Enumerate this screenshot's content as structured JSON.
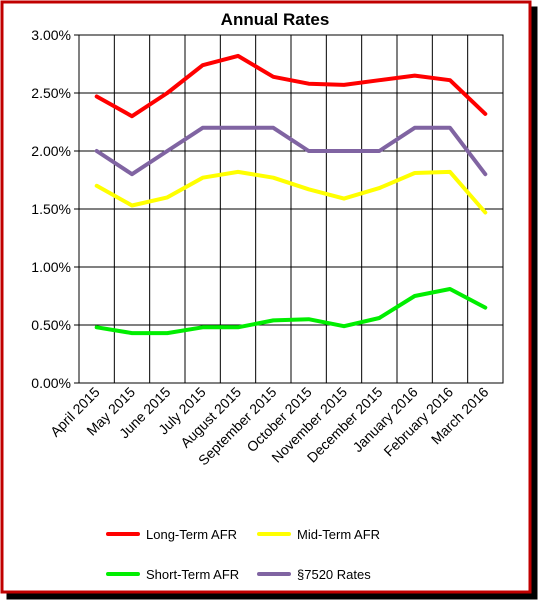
{
  "chart_data": {
    "type": "line",
    "title": "Annual Rates",
    "xlabel": "",
    "ylabel": "",
    "categories": [
      "April 2015",
      "May 2015",
      "June 2015",
      "July 2015",
      "August 2015",
      "September 2015",
      "October 2015",
      "November 2015",
      "December 2015",
      "January 2016",
      "February 2016",
      "March 2016"
    ],
    "y_ticks": [
      "0.00%",
      "0.50%",
      "1.00%",
      "1.50%",
      "2.00%",
      "2.50%",
      "3.00%"
    ],
    "ylim": [
      0,
      3.0
    ],
    "y_unit": "%",
    "grid": true,
    "legend_position": "bottom",
    "series": [
      {
        "name": "Long-Term AFR",
        "color": "#ff0000",
        "values": [
          2.47,
          2.3,
          2.5,
          2.74,
          2.82,
          2.64,
          2.58,
          2.57,
          2.61,
          2.65,
          2.61,
          2.32
        ]
      },
      {
        "name": "Mid-Term AFR",
        "color": "#ffff00",
        "values": [
          1.7,
          1.53,
          1.6,
          1.77,
          1.82,
          1.77,
          1.67,
          1.59,
          1.68,
          1.81,
          1.82,
          1.47
        ]
      },
      {
        "name": "Short-Term AFR",
        "color": "#00ee00",
        "values": [
          0.48,
          0.43,
          0.43,
          0.48,
          0.48,
          0.54,
          0.55,
          0.49,
          0.56,
          0.75,
          0.81,
          0.65
        ]
      },
      {
        "name": "§7520 Rates",
        "color": "#8064a2",
        "values": [
          2.0,
          1.8,
          2.0,
          2.2,
          2.2,
          2.2,
          2.0,
          2.0,
          2.0,
          2.2,
          2.2,
          1.8
        ]
      }
    ]
  }
}
